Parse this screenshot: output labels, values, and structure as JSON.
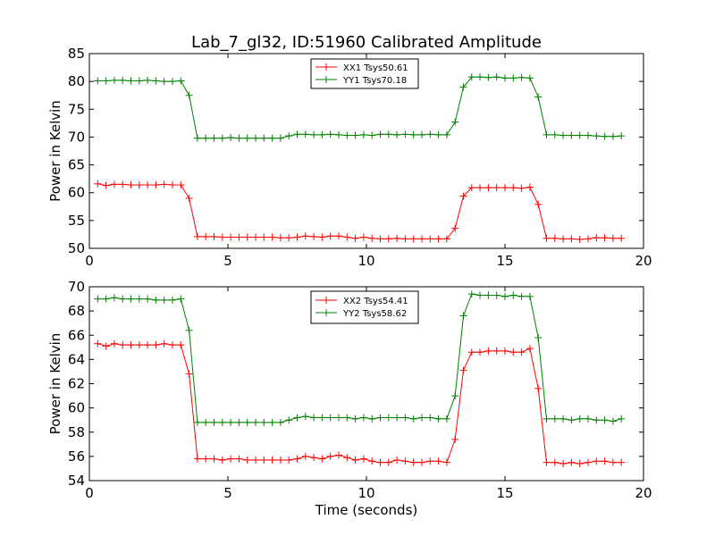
{
  "figure_title": "Lab_7_gl32, ID:51960 Calibrated Amplitude",
  "chart_data": [
    {
      "type": "line",
      "ylabel": "Power in Kelvin",
      "xlabel": "",
      "xlim": [
        0,
        20
      ],
      "ylim": [
        50,
        85
      ],
      "xticks": [
        0,
        5,
        10,
        15,
        20
      ],
      "yticks": [
        50,
        55,
        60,
        65,
        70,
        75,
        80,
        85
      ],
      "legend_position": "upper-center",
      "x": [
        0.3,
        0.6,
        0.9,
        1.2,
        1.5,
        1.8,
        2.1,
        2.4,
        2.7,
        3.0,
        3.3,
        3.6,
        3.9,
        4.2,
        4.5,
        4.8,
        5.1,
        5.4,
        5.7,
        6.0,
        6.3,
        6.6,
        6.9,
        7.2,
        7.5,
        7.8,
        8.1,
        8.4,
        8.7,
        9.0,
        9.3,
        9.6,
        9.9,
        10.2,
        10.5,
        10.8,
        11.1,
        11.4,
        11.7,
        12.0,
        12.3,
        12.6,
        12.9,
        13.2,
        13.5,
        13.8,
        14.1,
        14.4,
        14.7,
        15.0,
        15.3,
        15.6,
        15.9,
        16.2,
        16.5,
        16.8,
        17.1,
        17.4,
        17.7,
        18.0,
        18.3,
        18.6,
        18.9,
        19.2
      ],
      "series": [
        {
          "name": "XX1 Tsys50.61",
          "color": "#ff0000",
          "values": [
            61.6,
            61.3,
            61.5,
            61.5,
            61.4,
            61.4,
            61.4,
            61.4,
            61.5,
            61.4,
            61.4,
            59.0,
            52.1,
            52.1,
            52.1,
            52.0,
            52.0,
            52.0,
            52.0,
            52.0,
            52.0,
            52.0,
            51.9,
            51.9,
            52.0,
            52.2,
            52.1,
            52.0,
            52.2,
            52.2,
            52.0,
            51.8,
            52.0,
            51.8,
            51.7,
            51.7,
            51.8,
            51.7,
            51.7,
            51.7,
            51.7,
            51.7,
            51.7,
            53.6,
            59.4,
            60.9,
            60.9,
            60.9,
            60.9,
            60.9,
            60.9,
            60.8,
            61.0,
            57.9,
            51.8,
            51.8,
            51.7,
            51.7,
            51.6,
            51.7,
            51.9,
            51.9,
            51.8,
            51.8
          ]
        },
        {
          "name": "YY1 Tsys70.18",
          "color": "#008000",
          "values": [
            80.1,
            80.1,
            80.2,
            80.2,
            80.1,
            80.1,
            80.2,
            80.1,
            80.0,
            80.0,
            80.1,
            77.5,
            69.8,
            69.8,
            69.8,
            69.8,
            69.9,
            69.8,
            69.8,
            69.8,
            69.8,
            69.8,
            69.8,
            70.2,
            70.5,
            70.5,
            70.4,
            70.4,
            70.5,
            70.4,
            70.3,
            70.3,
            70.4,
            70.3,
            70.5,
            70.5,
            70.4,
            70.5,
            70.4,
            70.4,
            70.5,
            70.4,
            70.4,
            72.7,
            79.0,
            80.8,
            80.8,
            80.7,
            80.8,
            80.6,
            80.6,
            80.7,
            80.6,
            77.2,
            70.4,
            70.4,
            70.3,
            70.3,
            70.3,
            70.3,
            70.2,
            70.1,
            70.1,
            70.2
          ]
        }
      ]
    },
    {
      "type": "line",
      "ylabel": "Power in Kelvin",
      "xlabel": "Time (seconds)",
      "xlim": [
        0,
        20
      ],
      "ylim": [
        54,
        70
      ],
      "xticks": [
        0,
        5,
        10,
        15,
        20
      ],
      "yticks": [
        54,
        56,
        58,
        60,
        62,
        64,
        66,
        68,
        70
      ],
      "legend_position": "upper-center",
      "x": [
        0.3,
        0.6,
        0.9,
        1.2,
        1.5,
        1.8,
        2.1,
        2.4,
        2.7,
        3.0,
        3.3,
        3.6,
        3.9,
        4.2,
        4.5,
        4.8,
        5.1,
        5.4,
        5.7,
        6.0,
        6.3,
        6.6,
        6.9,
        7.2,
        7.5,
        7.8,
        8.1,
        8.4,
        8.7,
        9.0,
        9.3,
        9.6,
        9.9,
        10.2,
        10.5,
        10.8,
        11.1,
        11.4,
        11.7,
        12.0,
        12.3,
        12.6,
        12.9,
        13.2,
        13.5,
        13.8,
        14.1,
        14.4,
        14.7,
        15.0,
        15.3,
        15.6,
        15.9,
        16.2,
        16.5,
        16.8,
        17.1,
        17.4,
        17.7,
        18.0,
        18.3,
        18.6,
        18.9,
        19.2
      ],
      "series": [
        {
          "name": "XX2 Tsys54.41",
          "color": "#ff0000",
          "values": [
            65.3,
            65.1,
            65.3,
            65.2,
            65.2,
            65.2,
            65.2,
            65.2,
            65.3,
            65.2,
            65.2,
            62.8,
            55.8,
            55.8,
            55.8,
            55.7,
            55.8,
            55.8,
            55.7,
            55.7,
            55.7,
            55.7,
            55.7,
            55.7,
            55.8,
            56.0,
            55.9,
            55.8,
            56.0,
            56.1,
            55.9,
            55.7,
            55.8,
            55.6,
            55.5,
            55.5,
            55.7,
            55.6,
            55.5,
            55.5,
            55.6,
            55.6,
            55.5,
            57.4,
            63.1,
            64.6,
            64.6,
            64.7,
            64.7,
            64.7,
            64.6,
            64.6,
            64.9,
            61.6,
            55.5,
            55.5,
            55.4,
            55.5,
            55.4,
            55.5,
            55.6,
            55.6,
            55.5,
            55.5
          ]
        },
        {
          "name": "YY2 Tsys58.62",
          "color": "#008000",
          "values": [
            69.0,
            69.0,
            69.1,
            69.0,
            69.0,
            69.0,
            69.0,
            68.9,
            68.9,
            68.9,
            69.0,
            66.4,
            58.8,
            58.8,
            58.8,
            58.8,
            58.8,
            58.8,
            58.8,
            58.8,
            58.8,
            58.8,
            58.8,
            59.0,
            59.2,
            59.3,
            59.2,
            59.2,
            59.2,
            59.2,
            59.2,
            59.1,
            59.2,
            59.1,
            59.2,
            59.2,
            59.2,
            59.2,
            59.1,
            59.2,
            59.2,
            59.1,
            59.1,
            61.0,
            67.6,
            69.4,
            69.3,
            69.3,
            69.3,
            69.2,
            69.3,
            69.2,
            69.2,
            65.8,
            59.1,
            59.1,
            59.1,
            59.0,
            59.1,
            59.1,
            59.0,
            59.0,
            58.9,
            59.1
          ]
        }
      ]
    }
  ]
}
